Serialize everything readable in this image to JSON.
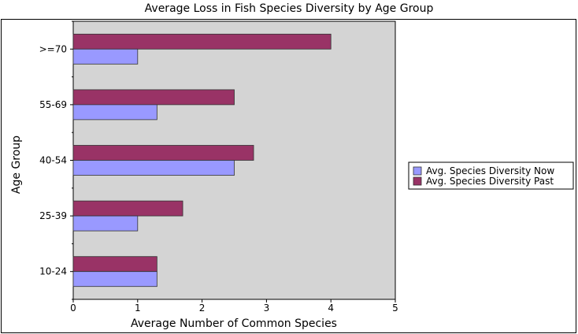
{
  "chart_data": {
    "type": "bar",
    "orientation": "horizontal",
    "title": "Average Loss in Fish Species Diversity by Age Group",
    "xlabel": "Average Number of Common Species",
    "ylabel": "Age Group",
    "xlim": [
      0,
      5
    ],
    "xticks": [
      0,
      1,
      2,
      3,
      4,
      5
    ],
    "categories": [
      "10-24",
      "25-39",
      "40-54",
      "55-69",
      ">=70"
    ],
    "series": [
      {
        "name": "Avg. Species Diversity Now",
        "color": "#9999ff",
        "values": [
          1.3,
          1.0,
          2.5,
          1.3,
          1.0
        ]
      },
      {
        "name": "Avg. Species Diversity Past",
        "color": "#993366",
        "values": [
          1.3,
          1.7,
          2.8,
          2.5,
          4.0
        ]
      }
    ],
    "plot_background": "#d4d4d4",
    "legend_position": "right",
    "grid": false
  }
}
